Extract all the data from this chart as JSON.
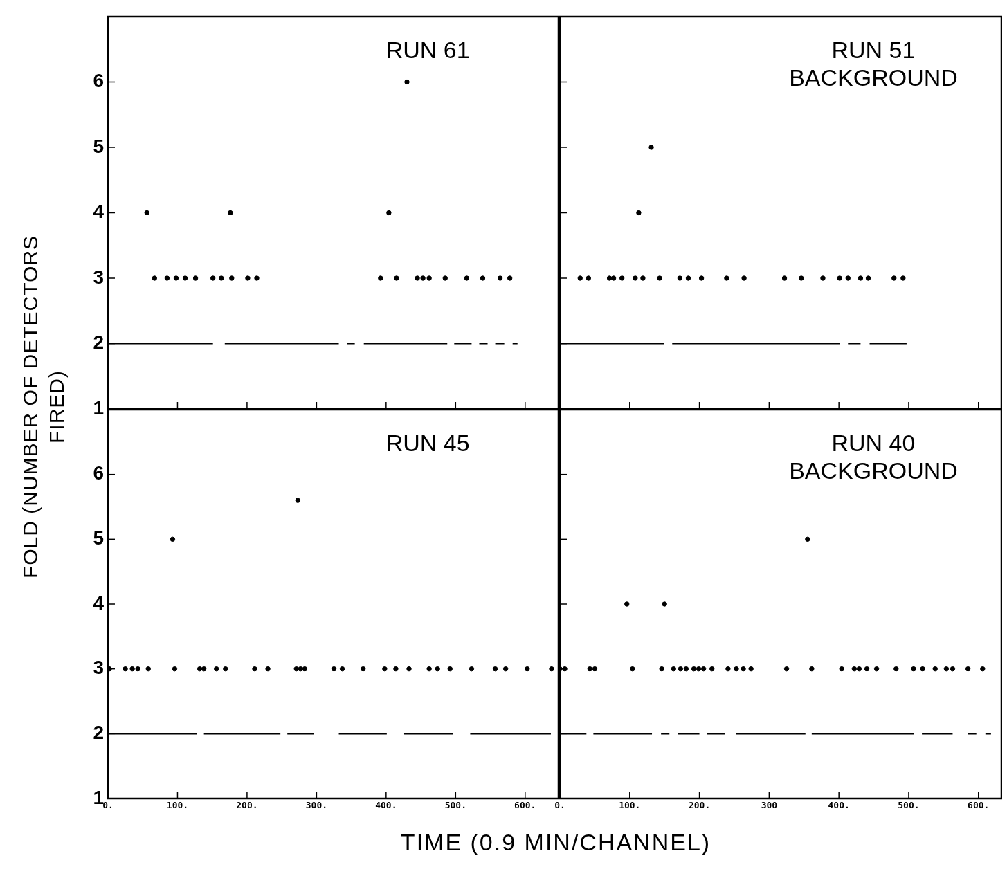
{
  "chart_data": [
    {
      "type": "scatter",
      "title": "RUN 61",
      "ylabel": "FOLD (NUMBER OF DETECTORS FIRED)",
      "xlim": [
        0,
        648
      ],
      "xticks": [
        {
          "value": 0,
          "label": null
        },
        {
          "value": 100,
          "label": null
        },
        {
          "value": 200,
          "label": null
        },
        {
          "value": 300,
          "label": null
        },
        {
          "value": 400,
          "label": null
        },
        {
          "value": 500,
          "label": null
        },
        {
          "value": 600,
          "label": null
        }
      ],
      "ylim": [
        1,
        7
      ],
      "yticks": [
        1,
        2,
        3,
        4,
        5,
        6
      ],
      "tick_labels": "y",
      "series": [
        {
          "color": "#000000",
          "marker": "circle",
          "x": [
            430,
            56,
            176,
            404,
            67,
            85,
            98,
            111,
            126,
            151,
            163,
            178,
            201,
            214,
            392,
            415,
            445,
            453,
            462,
            485,
            516,
            539,
            564,
            578
          ],
          "values": [
            6,
            4,
            4,
            4,
            3,
            3,
            3,
            3,
            3,
            3,
            3,
            3,
            3,
            3,
            3,
            3,
            3,
            3,
            3,
            3,
            3,
            3,
            3,
            3
          ]
        },
        {
          "type": "line",
          "color": "#000000",
          "marker": "none",
          "x": [
            0,
            151,
            156,
            168,
            332,
            338,
            344,
            355,
            362,
            368,
            488,
            493,
            498,
            523,
            528,
            534,
            546,
            551,
            557,
            570,
            575,
            582,
            589
          ],
          "values": [
            2,
            2,
            null,
            2,
            2,
            null,
            2,
            2,
            null,
            2,
            2,
            null,
            2,
            2,
            null,
            2,
            2,
            null,
            2,
            2,
            null,
            2,
            2
          ]
        }
      ]
    },
    {
      "type": "scatter",
      "title": "RUN 51 BACKGROUND",
      "xlim": [
        0,
        633
      ],
      "xticks": [
        {
          "value": 0,
          "label": null
        },
        {
          "value": 100,
          "label": null
        },
        {
          "value": 200,
          "label": null
        },
        {
          "value": 300,
          "label": null
        },
        {
          "value": 400,
          "label": null
        },
        {
          "value": 500,
          "label": null
        },
        {
          "value": 600,
          "label": null
        }
      ],
      "ylim": [
        1,
        7
      ],
      "yticks": [
        {
          "value": 1,
          "label": null
        },
        {
          "value": 2,
          "label": null
        },
        {
          "value": 3,
          "label": null
        },
        {
          "value": 4,
          "label": null
        },
        {
          "value": 5,
          "label": null
        },
        {
          "value": 6,
          "label": null
        }
      ],
      "tick_labels": false,
      "series": [
        {
          "color": "#000000",
          "marker": "circle",
          "x": [
            131,
            113,
            29,
            41,
            71,
            77,
            89,
            108,
            119,
            143,
            172,
            184,
            203,
            239,
            264,
            322,
            346,
            377,
            401,
            413,
            431,
            442,
            479,
            492
          ],
          "values": [
            5,
            4,
            3,
            3,
            3,
            3,
            3,
            3,
            3,
            3,
            3,
            3,
            3,
            3,
            3,
            3,
            3,
            3,
            3,
            3,
            3,
            3,
            3,
            3
          ]
        },
        {
          "type": "line",
          "color": "#000000",
          "marker": "none",
          "x": [
            0,
            149,
            155,
            161,
            401,
            407,
            413,
            431,
            437,
            444,
            497
          ],
          "values": [
            2,
            2,
            null,
            2,
            2,
            null,
            2,
            2,
            null,
            2,
            2
          ]
        }
      ]
    },
    {
      "type": "scatter",
      "title": "RUN 45",
      "xlabel": "TIME (0.9 MIN/CHANNEL)",
      "xlim": [
        0,
        648
      ],
      "xticks": [
        {
          "value": 0,
          "label": "0."
        },
        {
          "value": 100,
          "label": "100."
        },
        {
          "value": 200,
          "label": "200."
        },
        {
          "value": 300,
          "label": "300."
        },
        {
          "value": 400,
          "label": "400."
        },
        {
          "value": 500,
          "label": "500."
        },
        {
          "value": 600,
          "label": "600."
        }
      ],
      "ylim": [
        1,
        7
      ],
      "yticks": [
        1,
        2,
        3,
        4,
        5,
        6
      ],
      "series": [
        {
          "color": "#000000",
          "marker": "circle",
          "x": [
            93,
            273,
            2,
            25,
            35,
            43,
            58,
            96,
            132,
            138,
            156,
            169,
            211,
            230,
            271,
            277,
            283,
            325,
            337,
            367,
            398,
            414,
            433,
            462,
            474,
            492,
            523,
            557,
            572,
            603,
            638
          ],
          "values": [
            5,
            5.6,
            3,
            3,
            3,
            3,
            3,
            3,
            3,
            3,
            3,
            3,
            3,
            3,
            3,
            3,
            3,
            3,
            3,
            3,
            3,
            3,
            3,
            3,
            3,
            3,
            3,
            3,
            3,
            3,
            3
          ]
        },
        {
          "type": "line",
          "color": "#000000",
          "marker": "none",
          "x": [
            0,
            128,
            133,
            138,
            248,
            253,
            258,
            296,
            314,
            332,
            401,
            413,
            426,
            496,
            508,
            521,
            637
          ],
          "values": [
            2,
            2,
            null,
            2,
            2,
            null,
            2,
            2,
            null,
            2,
            2,
            null,
            2,
            2,
            null,
            2,
            2
          ]
        }
      ]
    },
    {
      "type": "scatter",
      "title": "RUN 40 BACKGROUND",
      "xlim": [
        0,
        633
      ],
      "xticks": [
        {
          "value": 0,
          "label": "0."
        },
        {
          "value": 100,
          "label": "100."
        },
        {
          "value": 200,
          "label": "200."
        },
        {
          "value": 300,
          "label": "300"
        },
        {
          "value": 400,
          "label": "400."
        },
        {
          "value": 500,
          "label": "500."
        },
        {
          "value": 600,
          "label": "600."
        }
      ],
      "ylim": [
        1,
        7
      ],
      "yticks": [
        {
          "value": 1,
          "label": null
        },
        {
          "value": 2,
          "label": null
        },
        {
          "value": 3,
          "label": null
        },
        {
          "value": 4,
          "label": null
        },
        {
          "value": 5,
          "label": null
        },
        {
          "value": 6,
          "label": null
        }
      ],
      "tick_labels": "x",
      "series": [
        {
          "color": "#000000",
          "marker": "circle",
          "x": [
            355,
            96,
            150,
            0,
            7,
            43,
            50,
            104,
            146,
            163,
            173,
            181,
            192,
            199,
            206,
            218,
            241,
            253,
            263,
            274,
            325,
            361,
            404,
            422,
            429,
            440,
            454,
            482,
            507,
            520,
            538,
            554,
            563,
            585,
            606
          ],
          "values": [
            5,
            4,
            4,
            3,
            3,
            3,
            3,
            3,
            3,
            3,
            3,
            3,
            3,
            3,
            3,
            3,
            3,
            3,
            3,
            3,
            3,
            3,
            3,
            3,
            3,
            3,
            3,
            3,
            3,
            3,
            3,
            3,
            3,
            3,
            3
          ]
        },
        {
          "type": "line",
          "color": "#000000",
          "marker": "none",
          "x": [
            0,
            38,
            43,
            48,
            132,
            138,
            145,
            157,
            163,
            169,
            200,
            205,
            211,
            237,
            245,
            253,
            352,
            356,
            361,
            507,
            513,
            519,
            563,
            574,
            585,
            597,
            603,
            610,
            618
          ],
          "values": [
            2,
            2,
            null,
            2,
            2,
            null,
            2,
            2,
            null,
            2,
            2,
            null,
            2,
            2,
            null,
            2,
            2,
            null,
            2,
            2,
            null,
            2,
            2,
            null,
            2,
            2,
            null,
            2,
            2
          ]
        }
      ]
    }
  ]
}
